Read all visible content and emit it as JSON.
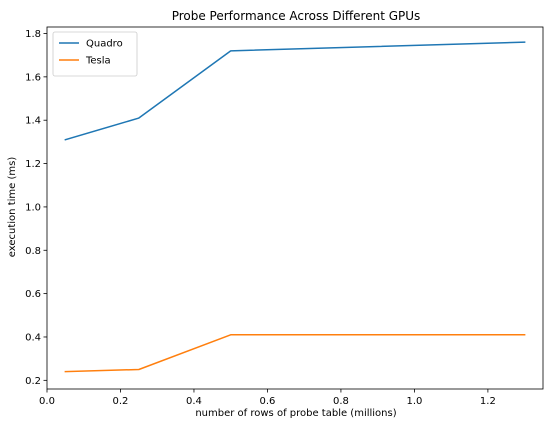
{
  "chart_data": {
    "type": "line",
    "title": "Probe Performance Across Different GPUs",
    "xlabel": "number of rows of probe table (millions)",
    "ylabel": "execution time (ms)",
    "xlim": [
      0.0,
      1.35
    ],
    "ylim": [
      0.16,
      1.83
    ],
    "xticks": [
      0.0,
      0.2,
      0.4,
      0.6,
      0.8,
      1.0,
      1.2
    ],
    "xtick_labels": [
      "0.0",
      "0.2",
      "0.4",
      "0.6",
      "0.8",
      "1.0",
      "1.2"
    ],
    "yticks": [
      0.2,
      0.4,
      0.6,
      0.8,
      1.0,
      1.2,
      1.4,
      1.6,
      1.8
    ],
    "ytick_labels": [
      "0.2",
      "0.4",
      "0.6",
      "0.8",
      "1.0",
      "1.2",
      "1.4",
      "1.6",
      "1.8"
    ],
    "x": [
      0.05,
      0.25,
      0.5,
      1.3
    ],
    "series": [
      {
        "name": "Quadro",
        "color": "#1f77b4",
        "values": [
          1.31,
          1.41,
          1.72,
          1.76
        ]
      },
      {
        "name": "Tesla",
        "color": "#ff7f0e",
        "values": [
          0.24,
          0.25,
          0.41,
          0.41
        ]
      }
    ],
    "grid": false,
    "legend_placement": "top-left"
  }
}
